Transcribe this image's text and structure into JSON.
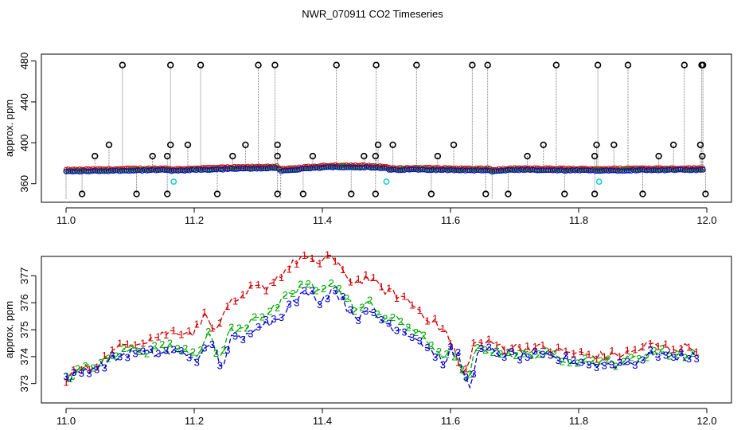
{
  "title": "NWR_070911  CO2 Timeseries",
  "chart_data": [
    {
      "type": "scatter",
      "ylabel": "approx. ppm",
      "xlim": [
        11.0,
        12.0
      ],
      "ylim": [
        345,
        482
      ],
      "x_ticks": [
        "11.0",
        "11.2",
        "11.4",
        "11.6",
        "11.8",
        "12.0"
      ],
      "x_tick_values": [
        11.0,
        11.2,
        11.4,
        11.6,
        11.8,
        12.0
      ],
      "y_ticks": [
        "360",
        "400",
        "440",
        "480"
      ],
      "y_tick_values": [
        360,
        400,
        440,
        480
      ],
      "grid": false,
      "series_colors": [
        "#cc0000",
        "#00aa00",
        "#0000cc",
        "#00cccc",
        "#000000"
      ],
      "baseline": [
        [
          11.0,
          372.5
        ],
        [
          11.05,
          373.0
        ],
        [
          11.1,
          373.5
        ],
        [
          11.16,
          374.0
        ],
        [
          11.165,
          373.0
        ],
        [
          11.2,
          374.0
        ],
        [
          11.26,
          375.0
        ],
        [
          11.3,
          375.5
        ],
        [
          11.33,
          376.0
        ],
        [
          11.335,
          373.0
        ],
        [
          11.38,
          375.5
        ],
        [
          11.42,
          377.0
        ],
        [
          11.47,
          376.5
        ],
        [
          11.5,
          375.5
        ],
        [
          11.505,
          374.0
        ],
        [
          11.55,
          374.5
        ],
        [
          11.6,
          374.0
        ],
        [
          11.64,
          373.5
        ],
        [
          11.66,
          374.0
        ],
        [
          11.665,
          372.5
        ],
        [
          11.7,
          374.0
        ],
        [
          11.8,
          373.5
        ],
        [
          11.85,
          373.5
        ],
        [
          11.9,
          374.0
        ],
        [
          11.95,
          374.0
        ],
        [
          12.0,
          374.0
        ]
      ],
      "spikes_high": [
        11.088,
        11.163,
        11.21,
        11.3,
        11.326,
        11.422,
        11.484,
        11.547,
        11.634,
        11.658,
        11.765,
        11.83,
        11.877,
        11.965,
        11.992,
        11.994
      ],
      "spikes_mid": [
        [
          11.045,
          387
        ],
        [
          11.067,
          398
        ],
        [
          11.135,
          387
        ],
        [
          11.158,
          387
        ],
        [
          11.163,
          398
        ],
        [
          11.19,
          398
        ],
        [
          11.26,
          387
        ],
        [
          11.28,
          398
        ],
        [
          11.33,
          387
        ],
        [
          11.33,
          398
        ],
        [
          11.385,
          387
        ],
        [
          11.465,
          387
        ],
        [
          11.483,
          387
        ],
        [
          11.487,
          398
        ],
        [
          11.51,
          398
        ],
        [
          11.58,
          387
        ],
        [
          11.605,
          398
        ],
        [
          11.72,
          387
        ],
        [
          11.745,
          398
        ],
        [
          11.825,
          387
        ],
        [
          11.828,
          398
        ],
        [
          11.855,
          398
        ],
        [
          11.925,
          387
        ],
        [
          11.948,
          398
        ],
        [
          11.99,
          398
        ],
        [
          11.993,
          387
        ]
      ],
      "spikes_low": [
        11.025,
        11.11,
        11.158,
        11.236,
        11.33,
        11.37,
        11.445,
        11.483,
        11.57,
        11.655,
        11.69,
        11.778,
        11.825,
        11.9,
        11.998
      ],
      "cyan_points": [
        [
          11.168,
          362
        ],
        [
          11.5,
          362
        ],
        [
          11.832,
          362
        ]
      ]
    },
    {
      "type": "line",
      "ylabel": "approx. ppm",
      "xlim": [
        11.0,
        12.0
      ],
      "ylim": [
        372.4,
        377.6
      ],
      "x_ticks": [
        "11.0",
        "11.2",
        "11.4",
        "11.6",
        "11.8",
        "12.0"
      ],
      "x_tick_values": [
        11.0,
        11.2,
        11.4,
        11.6,
        11.8,
        12.0
      ],
      "y_ticks": [
        "373",
        "374",
        "375",
        "376",
        "377"
      ],
      "y_tick_values": [
        373,
        374,
        375,
        376,
        377
      ],
      "grid": false,
      "series": [
        {
          "label": "1",
          "color": "#cc0000",
          "offset": 0.55,
          "lag": 0.0,
          "x": [
            11.0,
            11.02,
            11.04,
            11.06,
            11.08,
            11.1,
            11.12,
            11.14,
            11.16,
            11.18,
            11.2,
            11.22,
            11.235,
            11.25,
            11.27,
            11.29,
            11.31,
            11.33,
            11.35,
            11.37,
            11.39,
            11.41,
            11.43,
            11.45,
            11.47,
            11.49,
            11.51,
            11.53,
            11.55,
            11.57,
            11.59,
            11.605,
            11.62,
            11.635,
            11.65,
            11.67,
            11.7,
            11.73,
            11.76,
            11.79,
            11.82,
            11.85,
            11.88,
            11.91,
            11.94,
            11.96,
            11.985
          ],
          "y": [
            373.2,
            373.5,
            373.6,
            373.9,
            374.2,
            374.4,
            374.4,
            374.5,
            374.6,
            374.6,
            374.5,
            375.2,
            374.3,
            375.4,
            375.4,
            376.0,
            376.0,
            376.4,
            376.8,
            377.2,
            376.8,
            377.3,
            376.6,
            376.2,
            376.4,
            376.0,
            375.8,
            375.6,
            375.2,
            374.8,
            374.4,
            374.2,
            373.0,
            374.3,
            374.4,
            374.3,
            374.2,
            374.2,
            374.1,
            374.0,
            373.9,
            373.9,
            374.0,
            374.3,
            374.2,
            374.2,
            374.2
          ]
        },
        {
          "label": "2",
          "color": "#00aa00",
          "offset": -0.45,
          "lag": 0.004,
          "x": [
            11.0,
            11.02,
            11.04,
            11.06,
            11.08,
            11.1,
            11.12,
            11.14,
            11.16,
            11.18,
            11.2,
            11.22,
            11.235,
            11.25,
            11.27,
            11.29,
            11.31,
            11.33,
            11.35,
            11.37,
            11.39,
            11.41,
            11.43,
            11.45,
            11.47,
            11.49,
            11.51,
            11.53,
            11.55,
            11.57,
            11.59,
            11.605,
            11.62,
            11.635,
            11.65,
            11.67,
            11.7,
            11.73,
            11.76,
            11.79,
            11.82,
            11.85,
            11.88,
            11.91,
            11.94,
            11.96,
            11.985
          ],
          "y": [
            373.2,
            373.5,
            373.6,
            373.9,
            374.2,
            374.4,
            374.4,
            374.5,
            374.6,
            374.6,
            374.5,
            375.2,
            374.3,
            375.4,
            375.4,
            376.0,
            376.0,
            376.4,
            376.8,
            377.2,
            376.8,
            377.3,
            376.6,
            376.2,
            376.4,
            376.0,
            375.8,
            375.6,
            375.2,
            374.8,
            374.4,
            374.2,
            373.0,
            374.3,
            374.4,
            374.3,
            374.2,
            374.2,
            374.1,
            374.0,
            373.9,
            373.9,
            374.0,
            374.3,
            374.2,
            374.2,
            374.2
          ]
        },
        {
          "label": "3",
          "color": "#0000cc",
          "offset": -0.75,
          "lag": 0.008,
          "x": [
            11.0,
            11.02,
            11.04,
            11.06,
            11.08,
            11.1,
            11.12,
            11.14,
            11.16,
            11.18,
            11.2,
            11.22,
            11.235,
            11.25,
            11.27,
            11.29,
            11.31,
            11.33,
            11.35,
            11.37,
            11.39,
            11.41,
            11.43,
            11.45,
            11.47,
            11.49,
            11.51,
            11.53,
            11.55,
            11.57,
            11.59,
            11.605,
            11.62,
            11.635,
            11.65,
            11.67,
            11.7,
            11.73,
            11.76,
            11.79,
            11.82,
            11.85,
            11.88,
            11.91,
            11.94,
            11.96,
            11.985
          ],
          "y": [
            373.2,
            373.5,
            373.6,
            373.9,
            374.2,
            374.4,
            374.4,
            374.5,
            374.6,
            374.6,
            374.5,
            375.2,
            374.3,
            375.4,
            375.4,
            376.0,
            376.0,
            376.4,
            376.8,
            377.2,
            376.8,
            377.3,
            376.6,
            376.2,
            376.4,
            376.0,
            375.8,
            375.6,
            375.2,
            374.8,
            374.4,
            374.2,
            373.0,
            374.3,
            374.4,
            374.3,
            374.2,
            374.2,
            374.1,
            374.0,
            373.9,
            373.9,
            374.0,
            374.3,
            374.2,
            374.2,
            374.2
          ]
        }
      ]
    }
  ]
}
